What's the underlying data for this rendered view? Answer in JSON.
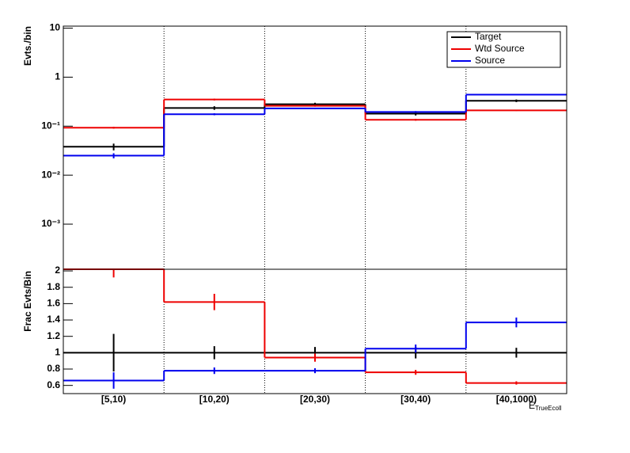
{
  "chart_data": [
    {
      "type": "step",
      "log_y": true,
      "y_label": "Evts./bin",
      "ylim": [
        0.00012,
        11
      ],
      "yticks": [
        10,
        1,
        {
          "value": 0.1,
          "label": "10⁻¹"
        },
        {
          "value": 0.01,
          "label": "10⁻²"
        },
        {
          "value": 0.001,
          "label": "10⁻³"
        }
      ],
      "legend": "top-right",
      "series": [
        {
          "name": "Target",
          "color": "#000000",
          "values": [
            0.038,
            0.235,
            0.28,
            0.18,
            0.33
          ],
          "errors": [
            0.006,
            0.02,
            0.02,
            0.015,
            0.02
          ]
        },
        {
          "name": "Wtd Source",
          "color": "#ee0000",
          "values": [
            0.093,
            0.35,
            0.26,
            0.135,
            0.21
          ],
          "errors": [
            0.004,
            0.015,
            0.01,
            0.006,
            0.006
          ]
        },
        {
          "name": "Source",
          "color": "#0000ee",
          "values": [
            0.025,
            0.175,
            0.23,
            0.195,
            0.44
          ],
          "errors": [
            0.003,
            0.008,
            0.008,
            0.008,
            0.012
          ]
        }
      ]
    },
    {
      "type": "step",
      "log_y": false,
      "y_label": "Frac Evts/Bin",
      "x_label": "E",
      "x_label_sub": "TrueEcoll",
      "categories": [
        "[5,10)",
        "[10,20)",
        "[20,30)",
        "[30,40)",
        "[40,1000)"
      ],
      "ylim": [
        0.5,
        2.02
      ],
      "yticks": [
        2,
        1.8,
        1.6,
        1.4,
        1.2,
        1,
        0.8,
        0.6
      ],
      "series": [
        {
          "name": "Target",
          "color": "#000000",
          "values": [
            1,
            1,
            1,
            1,
            1
          ],
          "errors": [
            0.23,
            0.08,
            0.07,
            0.07,
            0.06
          ]
        },
        {
          "name": "Wtd Source",
          "color": "#ee0000",
          "values": [
            2.02,
            1.62,
            0.94,
            0.76,
            0.63
          ],
          "errors": [
            0.1,
            0.1,
            0.05,
            0.03,
            0.02
          ]
        },
        {
          "name": "Source",
          "color": "#0000ee",
          "values": [
            0.66,
            0.78,
            0.78,
            1.05,
            1.37
          ],
          "errors": [
            0.1,
            0.04,
            0.03,
            0.05,
            0.06
          ]
        }
      ]
    }
  ]
}
